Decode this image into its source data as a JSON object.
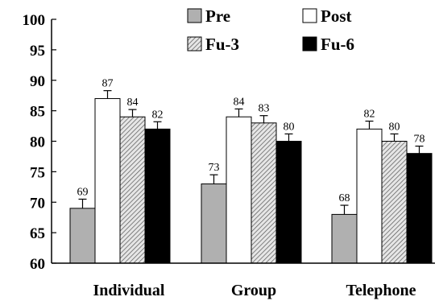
{
  "chart_data": {
    "type": "bar",
    "title": "",
    "xlabel": "",
    "ylabel": "",
    "ylim": [
      60,
      100
    ],
    "yticks": [
      "60",
      "65",
      "70",
      "75",
      "80",
      "85",
      "90",
      "95",
      "100"
    ],
    "categories": [
      "Individual",
      "Group",
      "Telephone"
    ],
    "legend_position": "top-right",
    "series": [
      {
        "name": "Pre",
        "fill": "#b0b0b0",
        "pattern": "solid",
        "values": [
          69,
          73,
          68
        ],
        "error": [
          1.5,
          1.5,
          1.5
        ]
      },
      {
        "name": "Post",
        "fill": "#ffffff",
        "pattern": "solid",
        "values": [
          87,
          84,
          82
        ],
        "error": [
          1.3,
          1.3,
          1.3
        ]
      },
      {
        "name": "Fu-3",
        "fill": "#d8d8d8",
        "pattern": "hatch",
        "values": [
          84,
          83,
          80
        ],
        "error": [
          1.2,
          1.2,
          1.2
        ]
      },
      {
        "name": "Fu-6",
        "fill": "#000000",
        "pattern": "solid",
        "values": [
          82,
          80,
          78
        ],
        "error": [
          1.2,
          1.2,
          1.2
        ]
      }
    ]
  }
}
